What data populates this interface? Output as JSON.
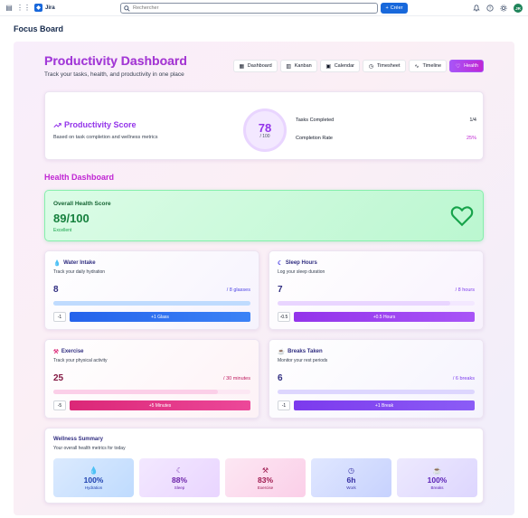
{
  "topbar": {
    "app_name": "Jira",
    "search_placeholder": "Rechercher",
    "create_label": "Créer",
    "avatar_initials": "JR"
  },
  "board_title": "Focus Board",
  "dashboard": {
    "title": "Productivity Dashboard",
    "subtitle": "Track your tasks, health, and productivity in one place",
    "tabs": [
      {
        "label": "Dashboard",
        "icon": "grid-icon",
        "active": false
      },
      {
        "label": "Kanban",
        "icon": "kanban-icon",
        "active": false
      },
      {
        "label": "Calendar",
        "icon": "calendar-icon",
        "active": false
      },
      {
        "label": "Timesheet",
        "icon": "clock-icon",
        "active": false
      },
      {
        "label": "Timeline",
        "icon": "activity-icon",
        "active": false
      },
      {
        "label": "Health",
        "icon": "heart-icon",
        "active": true
      }
    ]
  },
  "score": {
    "title": "Productivity Score",
    "subtitle": "Based on task completion and wellness metrics",
    "value": "78",
    "out_of": "/ 100",
    "tasks_label": "Tasks Completed",
    "tasks_value": "1/4",
    "rate_label": "Completion Rate",
    "rate_value": "25%"
  },
  "health": {
    "heading": "Health Dashboard",
    "overall": {
      "title": "Overall Health Score",
      "value": "89/100",
      "status": "Excellent"
    },
    "metrics": [
      {
        "title": "Water Intake",
        "subtitle": "Track your daily hydration",
        "value": "8",
        "goal": "/ 8 glasses",
        "dec": "-1",
        "inc": "+1 Glass",
        "progress": 1.0,
        "icon": "droplets-icon"
      },
      {
        "title": "Sleep Hours",
        "subtitle": "Log your sleep duration",
        "value": "7",
        "goal": "/ 8 hours",
        "dec": "-0.5",
        "inc": "+0.5 Hours",
        "progress": 0.875,
        "icon": "moon-icon"
      },
      {
        "title": "Exercise",
        "subtitle": "Track your physical activity",
        "value": "25",
        "goal": "/ 30 minutes",
        "dec": "-5",
        "inc": "+5 Minutes",
        "progress": 0.833,
        "icon": "dumbbell-icon"
      },
      {
        "title": "Breaks Taken",
        "subtitle": "Monitor your rest periods",
        "value": "6",
        "goal": "/ 6 breaks",
        "dec": "-1",
        "inc": "+1 Break",
        "progress": 1.0,
        "icon": "coffee-icon"
      }
    ],
    "wellness": {
      "title": "Wellness Summary",
      "subtitle": "Your overall health metrics for today",
      "tiles": [
        {
          "value": "100%",
          "label": "Hydration",
          "icon": "droplets-icon"
        },
        {
          "value": "88%",
          "label": "Sleep",
          "icon": "moon-icon"
        },
        {
          "value": "83%",
          "label": "Exercise",
          "icon": "dumbbell-icon"
        },
        {
          "value": "6h",
          "label": "Work",
          "icon": "clock-icon"
        },
        {
          "value": "100%",
          "label": "Breaks",
          "icon": "coffee-icon"
        }
      ]
    }
  }
}
